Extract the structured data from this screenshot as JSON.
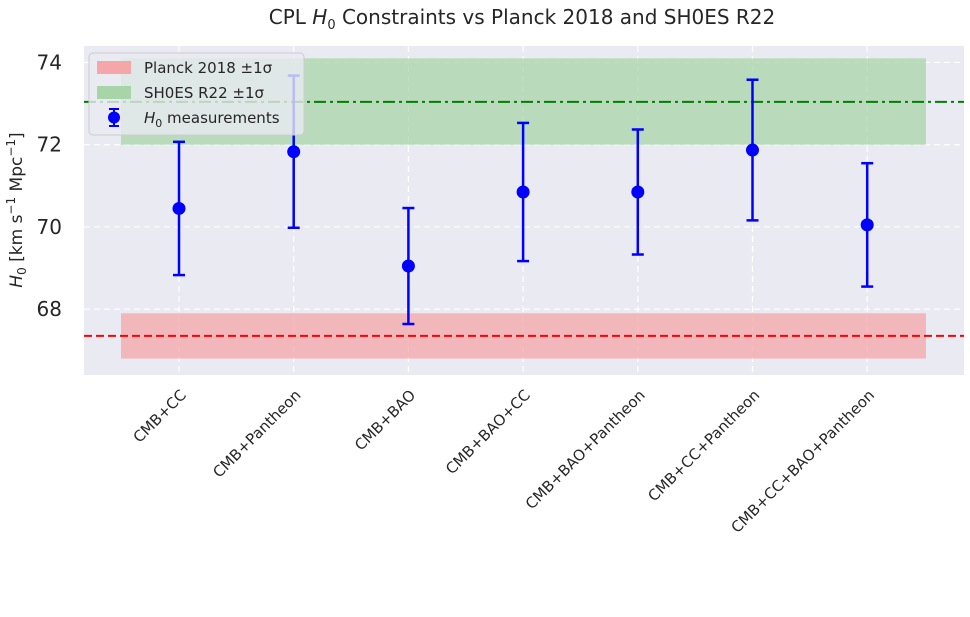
{
  "chart_data": {
    "type": "scatter",
    "title_prefix": "CPL ",
    "title_symbol": "H",
    "title_sub": "0",
    "title_rest": " Constraints vs Planck 2018 and SH0ES R22",
    "ylabel": {
      "symbol": "H",
      "sub": "0",
      "units_open": " [km s",
      "exp1": "−1",
      "units_mid": " Mpc",
      "exp2": "−1",
      "units_close": "]"
    },
    "categories": [
      "CMB+CC",
      "CMB+Pantheon",
      "CMB+BAO",
      "CMB+BAO+CC",
      "CMB+BAO+Pantheon",
      "CMB+CC+Pantheon",
      "CMB+CC+BAO+Pantheon"
    ],
    "series": [
      {
        "name": "H0 measurements",
        "color": "#0000ff",
        "values": [
          70.45,
          71.83,
          69.05,
          70.85,
          70.85,
          71.87,
          70.05
        ],
        "err_low": [
          1.62,
          1.85,
          1.41,
          1.68,
          1.52,
          1.71,
          1.5
        ],
        "err_high": [
          1.62,
          1.85,
          1.41,
          1.68,
          1.52,
          1.71,
          1.5
        ]
      }
    ],
    "bands": [
      {
        "name": "Planck 2018 ±1σ",
        "low": 66.8,
        "high": 67.9,
        "color": "#f4a6a8",
        "line": 67.35,
        "line_color": "#ff0000",
        "line_style": "dashed"
      },
      {
        "name": "SH0ES R22 ±1σ",
        "low": 72.0,
        "high": 74.1,
        "color": "#a8d5a8",
        "line": 73.04,
        "line_color": "#008000",
        "line_style": "dashdot"
      }
    ],
    "legend": {
      "planck_label": "Planck 2018 ±1σ",
      "shoes_label": "SH0ES R22 ±1σ",
      "meas_symbol": "H",
      "meas_sub": "0",
      "meas_rest": " measurements",
      "position": "upper-left"
    },
    "yticks": [
      "68",
      "70",
      "72",
      "74"
    ],
    "ytick_values": [
      68,
      70,
      72,
      74
    ],
    "ylim": [
      66.4,
      74.4
    ],
    "grid": true,
    "background": "#eaeaf2"
  }
}
